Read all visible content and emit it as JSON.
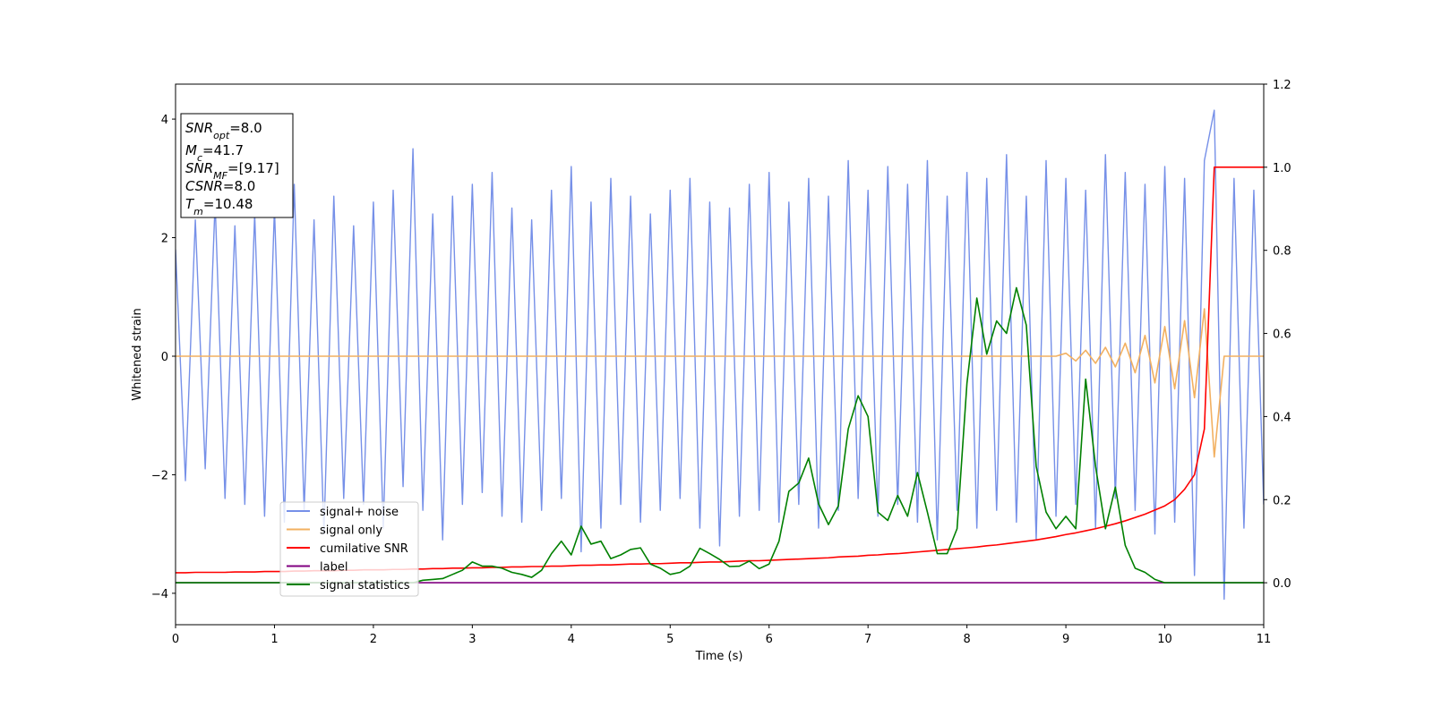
{
  "chart_data": {
    "type": "line",
    "xlabel": "Time (s)",
    "ylabel": "Whitened strain",
    "annotations": [
      {
        "base": "SNR",
        "sub": "opt",
        "rest": "=8.0"
      },
      {
        "base": "M",
        "sub": "c",
        "rest": "=41.7"
      },
      {
        "base": "SNR",
        "sub": "MF",
        "rest": "=[9.17]"
      },
      {
        "base": "CSNR",
        "sub": "",
        "rest": "=8.0"
      },
      {
        "base": "T",
        "sub": "m",
        "rest": "=10.48"
      }
    ],
    "legend": "lower left",
    "xlim": [
      0,
      11
    ],
    "xticks": [
      0,
      1,
      2,
      3,
      4,
      5,
      6,
      7,
      8,
      9,
      10,
      11
    ],
    "ylim": [
      -4.53,
      4.59
    ],
    "yticks": [
      {
        "value": -4,
        "label": "−4"
      },
      {
        "value": -2,
        "label": "−2"
      },
      {
        "value": 0,
        "label": "0"
      },
      {
        "value": 2,
        "label": "2"
      },
      {
        "value": 4,
        "label": "4"
      }
    ],
    "y2lim": [
      -0.101,
      1.2
    ],
    "y2ticks": [
      {
        "value": 0,
        "label": "0.0"
      },
      {
        "value": 0.2,
        "label": "0.2"
      },
      {
        "value": 0.4,
        "label": "0.4"
      },
      {
        "value": 0.6,
        "label": "0.6"
      },
      {
        "value": 0.8,
        "label": "0.8"
      },
      {
        "value": 1.0,
        "label": "1.0"
      },
      {
        "value": 1.2,
        "label": "1.2"
      }
    ],
    "x": [
      0,
      0.1,
      0.2,
      0.3,
      0.4,
      0.5,
      0.6,
      0.7,
      0.8,
      0.9,
      1,
      1.1,
      1.2,
      1.3,
      1.4,
      1.5,
      1.6,
      1.7,
      1.8,
      1.9,
      2,
      2.1,
      2.2,
      2.3,
      2.4,
      2.5,
      2.6,
      2.7,
      2.8,
      2.9,
      3,
      3.1,
      3.2,
      3.3,
      3.4,
      3.5,
      3.6,
      3.7,
      3.8,
      3.9,
      4,
      4.1,
      4.2,
      4.3,
      4.4,
      4.5,
      4.6,
      4.7,
      4.8,
      4.9,
      5,
      5.1,
      5.2,
      5.3,
      5.4,
      5.5,
      5.6,
      5.7,
      5.8,
      5.9,
      6,
      6.1,
      6.2,
      6.3,
      6.4,
      6.5,
      6.6,
      6.7,
      6.8,
      6.9,
      7,
      7.1,
      7.2,
      7.3,
      7.4,
      7.5,
      7.6,
      7.7,
      7.8,
      7.9,
      8,
      8.1,
      8.2,
      8.3,
      8.4,
      8.5,
      8.6,
      8.7,
      8.8,
      8.9,
      9,
      9.1,
      9.2,
      9.3,
      9.4,
      9.5,
      9.6,
      9.7,
      9.8,
      9.9,
      10,
      10.1,
      10.2,
      10.3,
      10.4,
      10.5,
      10.6,
      10.7,
      10.8,
      10.9,
      11
    ],
    "series": [
      {
        "name": "signal+ noise",
        "color": "#7690e8",
        "values": [
          1.8,
          -2.1,
          2.3,
          -1.9,
          2.6,
          -2.4,
          2.2,
          -2.5,
          2.4,
          -2.7,
          2.5,
          -2.8,
          2.9,
          -2.6,
          2.3,
          -3.0,
          2.7,
          -2.4,
          2.2,
          -2.5,
          2.6,
          -2.9,
          2.8,
          -2.2,
          3.5,
          -2.6,
          2.4,
          -3.1,
          2.7,
          -2.5,
          2.9,
          -2.3,
          3.1,
          -2.7,
          2.5,
          -2.8,
          2.3,
          -2.6,
          2.8,
          -2.4,
          3.2,
          -3.3,
          2.6,
          -2.9,
          3.0,
          -2.5,
          2.7,
          -2.8,
          2.4,
          -2.6,
          2.8,
          -2.4,
          3.0,
          -2.9,
          2.6,
          -3.2,
          2.5,
          -2.7,
          2.9,
          -2.6,
          3.1,
          -2.8,
          2.6,
          -2.5,
          3.0,
          -2.9,
          2.7,
          -2.6,
          3.3,
          -2.4,
          2.8,
          -2.7,
          3.2,
          -2.5,
          2.9,
          -2.8,
          3.3,
          -3.1,
          2.7,
          -2.6,
          3.1,
          -2.9,
          3.0,
          -2.6,
          3.4,
          -2.8,
          2.7,
          -3.1,
          3.3,
          -2.7,
          3.0,
          -2.5,
          2.8,
          -2.9,
          3.4,
          -2.4,
          3.1,
          -2.6,
          2.9,
          -3.0,
          3.2,
          -2.8,
          3.0,
          -3.7,
          3.3,
          4.15,
          -4.1,
          3.0,
          -2.9,
          2.8,
          -2.5
        ]
      },
      {
        "name": "signal only",
        "color": "#f2b061",
        "values": [
          0,
          0,
          0,
          0,
          0,
          0,
          0,
          0,
          0,
          0,
          0,
          0,
          0,
          0,
          0,
          0,
          0,
          0,
          0,
          0,
          0,
          0,
          0,
          0,
          0,
          0,
          0,
          0,
          0,
          0,
          0,
          0,
          0,
          0,
          0,
          0,
          0,
          0,
          0,
          0,
          0,
          0,
          0,
          0,
          0,
          0,
          0,
          0,
          0,
          0,
          0,
          0,
          0,
          0,
          0,
          0,
          0,
          0,
          0,
          0,
          0,
          0,
          0,
          0,
          0,
          0,
          0,
          0,
          0,
          0,
          0,
          0,
          0,
          0,
          0,
          0,
          0,
          0,
          0,
          0,
          0,
          0,
          0,
          0,
          0,
          0,
          0,
          0,
          0,
          0,
          0.05,
          -0.08,
          0.1,
          -0.12,
          0.15,
          -0.18,
          0.22,
          -0.28,
          0.35,
          -0.45,
          0.5,
          -0.55,
          0.6,
          -0.7,
          0.8,
          -1.7,
          0,
          0,
          0,
          0,
          0
        ]
      },
      {
        "name": "cumilative SNR",
        "color": "#ff0000",
        "axis": "y2",
        "values": [
          0.024,
          0.024,
          0.025,
          0.025,
          0.025,
          0.025,
          0.026,
          0.026,
          0.026,
          0.027,
          0.027,
          0.027,
          0.028,
          0.028,
          0.029,
          0.029,
          0.029,
          0.03,
          0.03,
          0.031,
          0.031,
          0.031,
          0.032,
          0.032,
          0.033,
          0.033,
          0.034,
          0.034,
          0.035,
          0.035,
          0.036,
          0.036,
          0.037,
          0.037,
          0.038,
          0.038,
          0.039,
          0.039,
          0.04,
          0.04,
          0.041,
          0.042,
          0.042,
          0.043,
          0.043,
          0.044,
          0.045,
          0.045,
          0.046,
          0.046,
          0.047,
          0.048,
          0.048,
          0.049,
          0.05,
          0.05,
          0.051,
          0.052,
          0.053,
          0.053,
          0.054,
          0.055,
          0.056,
          0.057,
          0.058,
          0.059,
          0.06,
          0.062,
          0.063,
          0.064,
          0.066,
          0.067,
          0.069,
          0.07,
          0.072,
          0.074,
          0.076,
          0.078,
          0.08,
          0.082,
          0.084,
          0.086,
          0.089,
          0.091,
          0.094,
          0.097,
          0.1,
          0.103,
          0.107,
          0.111,
          0.116,
          0.12,
          0.125,
          0.13,
          0.136,
          0.142,
          0.149,
          0.157,
          0.165,
          0.175,
          0.185,
          0.2,
          0.225,
          0.26,
          0.37,
          1.0,
          1.0,
          1.0,
          1.0,
          1.0,
          1.0
        ]
      },
      {
        "name": "label",
        "color": "#800080",
        "axis": "y2",
        "values": [
          0,
          0,
          0,
          0,
          0,
          0,
          0,
          0,
          0,
          0,
          0,
          0,
          0,
          0,
          0,
          0,
          0,
          0,
          0,
          0,
          0,
          0,
          0,
          0,
          0,
          0,
          0,
          0,
          0,
          0,
          0,
          0,
          0,
          0,
          0,
          0,
          0,
          0,
          0,
          0,
          0,
          0,
          0,
          0,
          0,
          0,
          0,
          0,
          0,
          0,
          0,
          0,
          0,
          0,
          0,
          0,
          0,
          0,
          0,
          0,
          0,
          0,
          0,
          0,
          0,
          0,
          0,
          0,
          0,
          0,
          0,
          0,
          0,
          0,
          0,
          0,
          0,
          0,
          0,
          0,
          0,
          0,
          0,
          0,
          0,
          0,
          0,
          0,
          0,
          0,
          0,
          0,
          0,
          0,
          0,
          0,
          0,
          0,
          0,
          0,
          0,
          0,
          0,
          0,
          0,
          0,
          0,
          0,
          0,
          0,
          0
        ]
      },
      {
        "name": "signal statistics",
        "color": "#008000",
        "axis": "y2",
        "values": [
          0,
          0,
          0,
          0,
          0,
          0,
          0,
          0,
          0,
          0,
          0,
          0,
          0,
          0,
          0,
          0,
          0,
          0,
          0,
          0,
          0,
          0,
          0,
          0,
          0,
          0.006,
          0.008,
          0.01,
          0.02,
          0.03,
          0.05,
          0.04,
          0.04,
          0.035,
          0.025,
          0.02,
          0.013,
          0.03,
          0.07,
          0.1,
          0.067,
          0.136,
          0.093,
          0.1,
          0.058,
          0.067,
          0.08,
          0.084,
          0.045,
          0.035,
          0.02,
          0.025,
          0.04,
          0.083,
          0.07,
          0.056,
          0.039,
          0.04,
          0.052,
          0.034,
          0.045,
          0.1,
          0.22,
          0.24,
          0.3,
          0.19,
          0.14,
          0.185,
          0.37,
          0.45,
          0.4,
          0.17,
          0.15,
          0.21,
          0.16,
          0.265,
          0.17,
          0.07,
          0.07,
          0.13,
          0.48,
          0.685,
          0.55,
          0.63,
          0.6,
          0.71,
          0.62,
          0.28,
          0.17,
          0.13,
          0.16,
          0.13,
          0.49,
          0.28,
          0.13,
          0.23,
          0.09,
          0.035,
          0.025,
          0.008,
          0,
          0,
          0,
          0,
          0,
          0,
          0,
          0,
          0,
          0,
          0
        ]
      }
    ]
  }
}
